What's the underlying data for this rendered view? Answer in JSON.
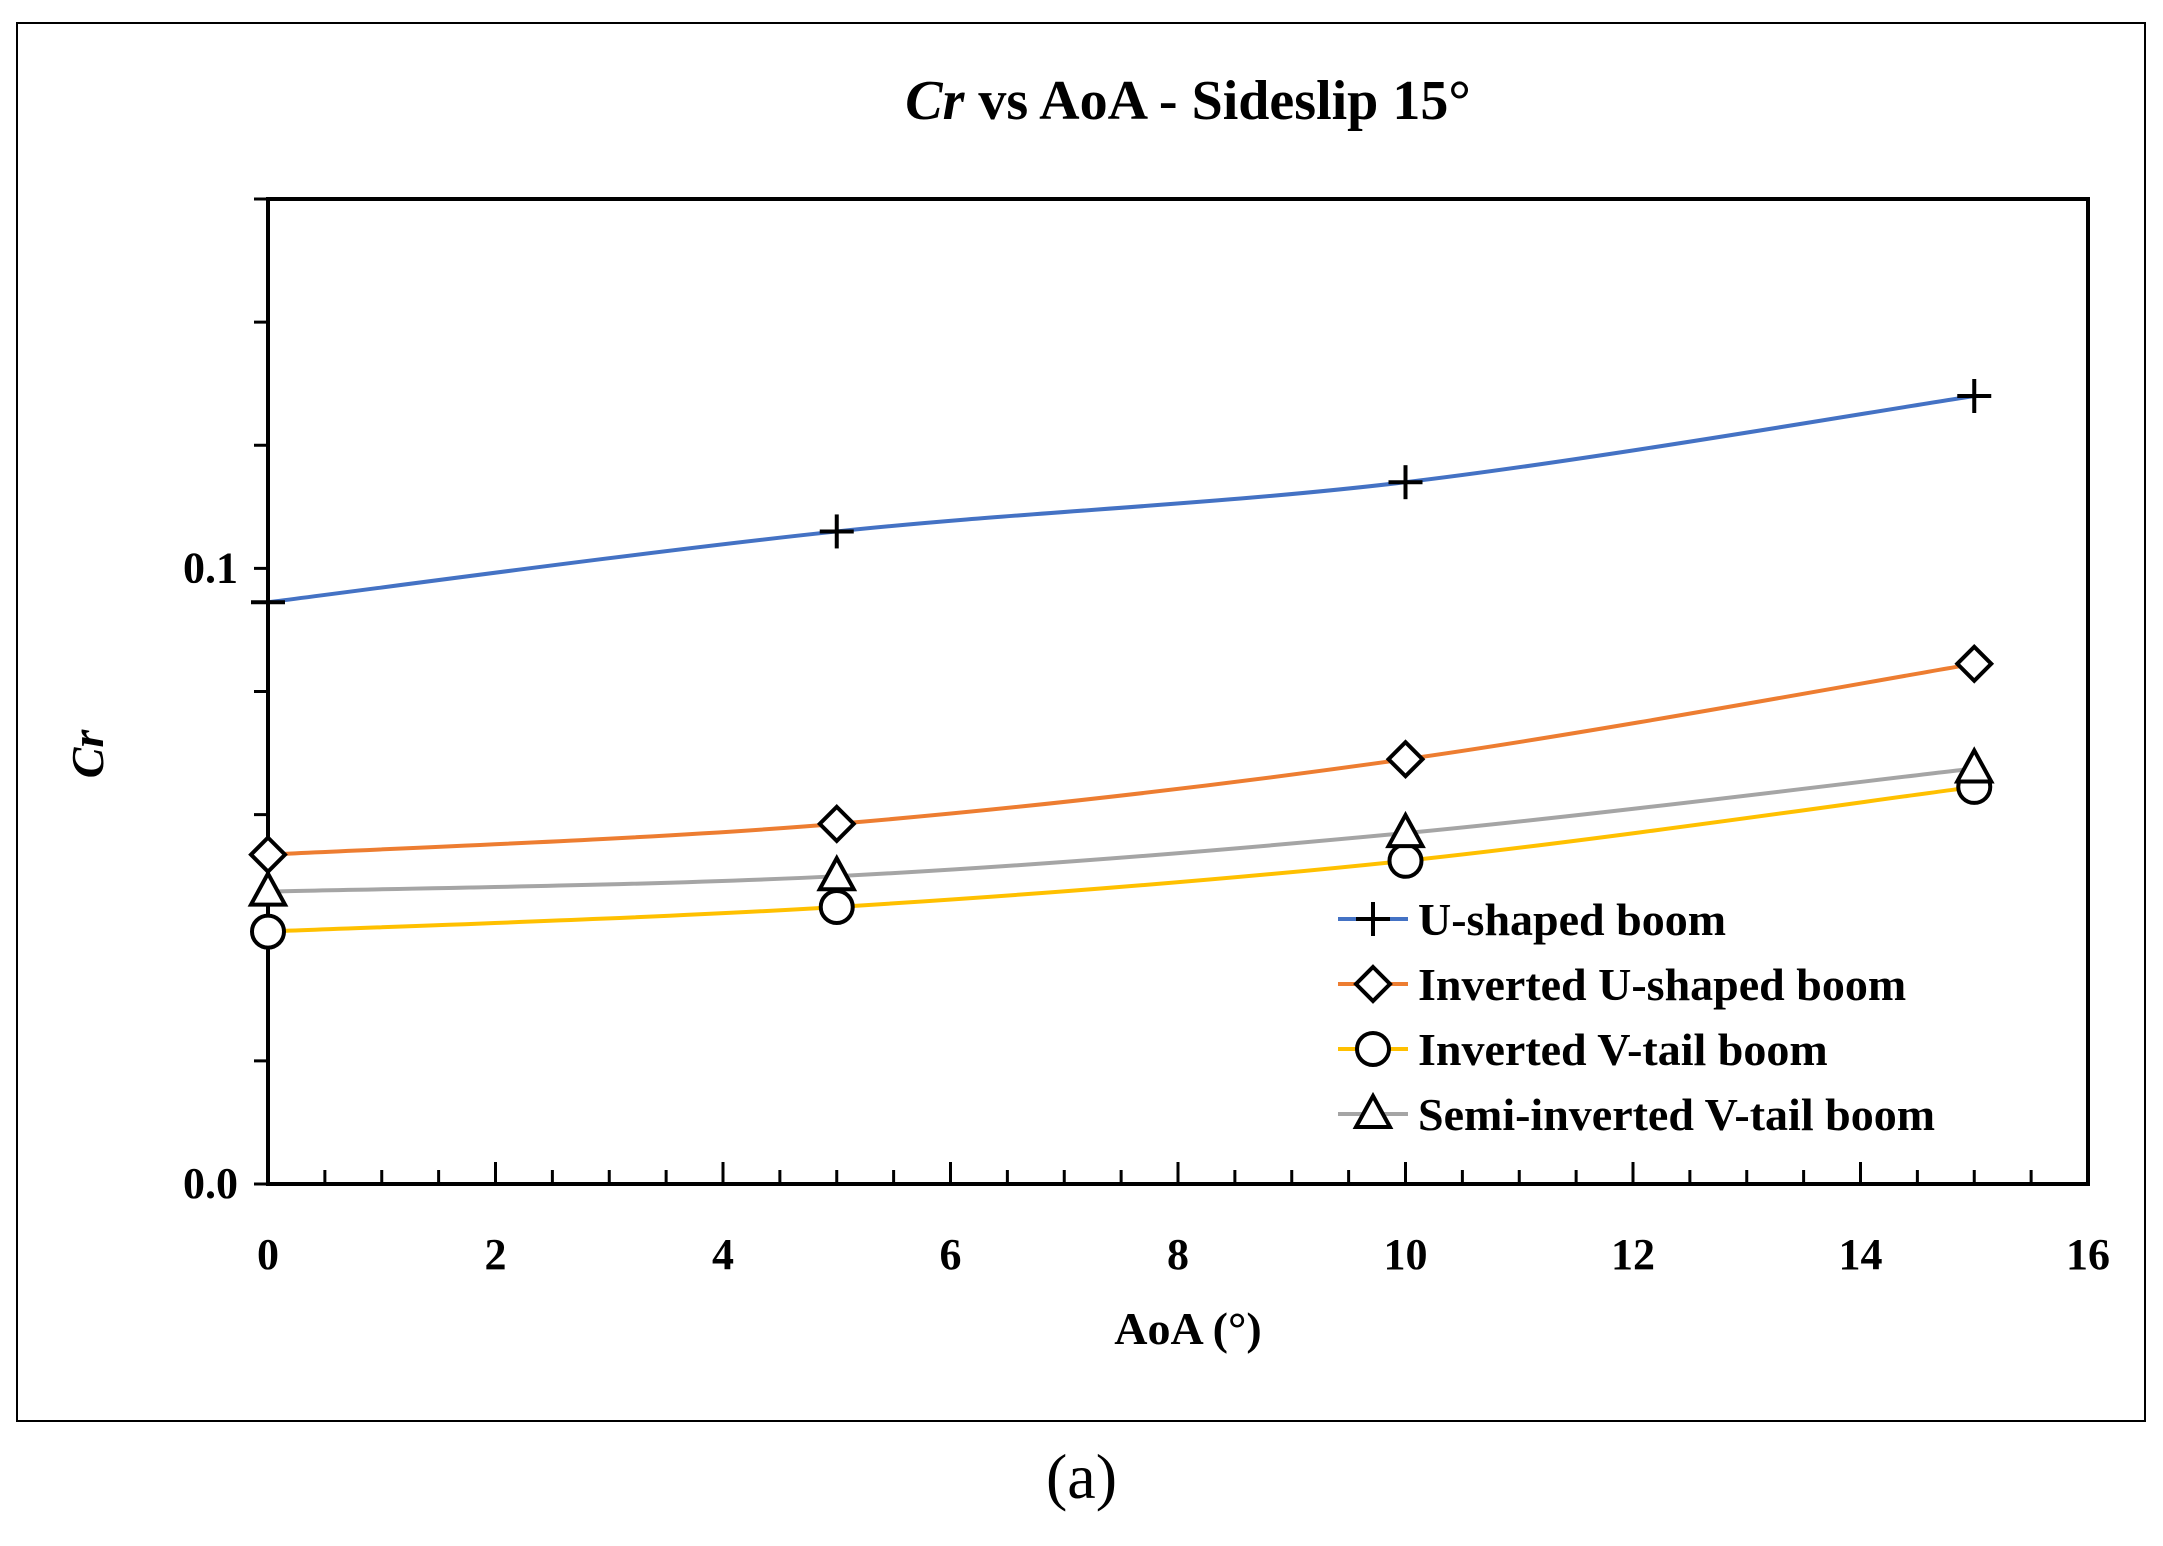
{
  "chart_data": {
    "type": "line",
    "title_italic": "Cr",
    "title_rest": " vs AoA - Sideslip 15°",
    "xlabel": "AoA (°)",
    "ylabel": "Cr",
    "xlim": [
      0,
      16
    ],
    "xticks": [
      0,
      2,
      4,
      6,
      8,
      10,
      12,
      14,
      16
    ],
    "ylim": [
      0,
      0.16
    ],
    "yticks": [
      {
        "value": 0.0,
        "label": "0.0"
      },
      {
        "value": 0.1,
        "label": "0.1"
      }
    ],
    "legend_position": "bottom-right",
    "x": [
      0,
      5,
      10,
      15
    ],
    "series": [
      {
        "name": "U-shaped boom",
        "marker": "plus",
        "color": "#4472C4",
        "values": [
          0.0945,
          0.106,
          0.114,
          0.128
        ]
      },
      {
        "name": "Inverted U-shaped boom",
        "marker": "diamond",
        "color": "#ED7D31",
        "values": [
          0.0535,
          0.0585,
          0.069,
          0.0845
        ]
      },
      {
        "name": "Inverted V-tail boom",
        "marker": "circle",
        "color": "#FFC000",
        "values": [
          0.041,
          0.045,
          0.0525,
          0.0645
        ]
      },
      {
        "name": "Semi-inverted V-tail boom",
        "marker": "triangle",
        "color": "#A5A5A5",
        "values": [
          0.0475,
          0.05,
          0.057,
          0.0675
        ]
      }
    ]
  },
  "caption": "(a)"
}
